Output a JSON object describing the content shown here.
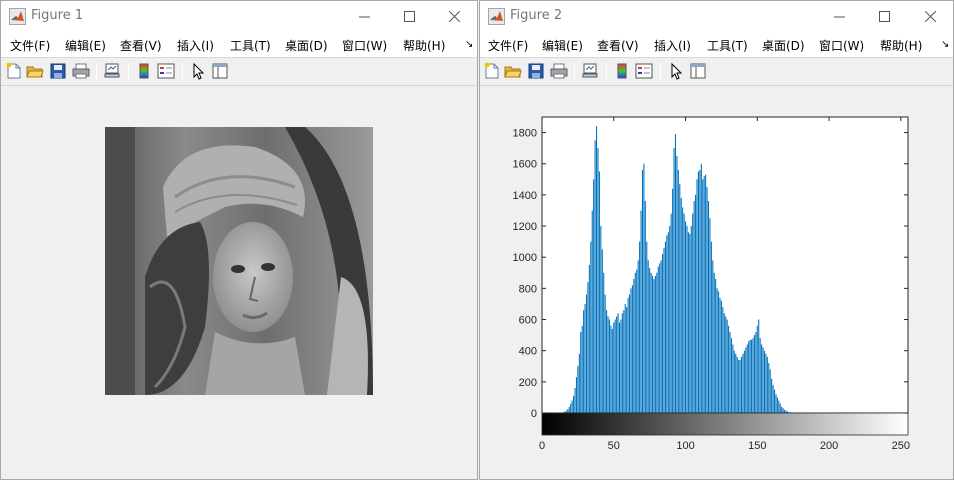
{
  "window1": {
    "title": "Figure 1",
    "menu": [
      "文件(F)",
      "编辑(E)",
      "查看(V)",
      "插入(I)",
      "工具(T)",
      "桌面(D)",
      "窗口(W)",
      "帮助(H)"
    ],
    "menu_overflow": "↘",
    "image_description": "grayscale photograph of a woman wearing a wide-brimmed hat"
  },
  "window2": {
    "title": "Figure 2",
    "menu": [
      "文件(F)",
      "编辑(E)",
      "查看(V)",
      "插入(I)",
      "工具(T)",
      "桌面(D)",
      "窗口(W)",
      "帮助(H)"
    ],
    "menu_overflow": "↘"
  },
  "toolbar_icons": [
    "new-figure-icon",
    "open-file-icon",
    "save-icon",
    "print-icon",
    "link-plot-icon",
    "insert-colorbar-icon",
    "insert-legend-icon",
    "pointer-icon",
    "property-editor-icon"
  ],
  "colors": {
    "bar": "#0072bd",
    "titlebar": "#ffffff",
    "panel": "#f0f0f0"
  },
  "chart_data": {
    "type": "bar",
    "title": "",
    "xlabel": "",
    "ylabel": "",
    "xlim": [
      0,
      255
    ],
    "ylim": [
      0,
      1900
    ],
    "yticks": [
      0,
      200,
      400,
      600,
      800,
      1000,
      1200,
      1400,
      1600,
      1800
    ],
    "xticks": [
      0,
      50,
      100,
      150,
      200,
      250
    ],
    "grid": false,
    "colorbar": "grayscale gradient 0-255",
    "series": [
      {
        "values": [
          0,
          0,
          0,
          0,
          0,
          0,
          0,
          0,
          0,
          0,
          0,
          0,
          0,
          0,
          0,
          5,
          10,
          15,
          25,
          40,
          60,
          80,
          110,
          160,
          230,
          300,
          380,
          520,
          560,
          660,
          700,
          760,
          840,
          950,
          1100,
          1300,
          1500,
          1750,
          1840,
          1700,
          1550,
          1200,
          1050,
          900,
          760,
          660,
          620,
          600,
          560,
          540,
          580,
          600,
          620,
          640,
          580,
          600,
          640,
          660,
          700,
          680,
          740,
          760,
          800,
          820,
          860,
          900,
          920,
          980,
          1100,
          1300,
          1560,
          1600,
          1360,
          1100,
          980,
          930,
          900,
          880,
          860,
          880,
          900,
          940,
          960,
          980,
          1020,
          1060,
          1100,
          1140,
          1160,
          1200,
          1280,
          1440,
          1700,
          1790,
          1650,
          1560,
          1470,
          1380,
          1320,
          1280,
          1230,
          1200,
          1160,
          1150,
          1200,
          1280,
          1360,
          1400,
          1500,
          1550,
          1560,
          1600,
          1500,
          1520,
          1530,
          1450,
          1360,
          1250,
          1100,
          980,
          900,
          860,
          800,
          780,
          740,
          720,
          680,
          640,
          620,
          600,
          560,
          520,
          480,
          440,
          400,
          380,
          360,
          340,
          340,
          360,
          380,
          400,
          420,
          440,
          460,
          470,
          470,
          480,
          500,
          520,
          560,
          600,
          480,
          440,
          420,
          400,
          380,
          360,
          320,
          280,
          220,
          180,
          150,
          120,
          100,
          80,
          60,
          40,
          30,
          20,
          15,
          10,
          5,
          5,
          3,
          2,
          1,
          1,
          0,
          0,
          0,
          0,
          0,
          0,
          0,
          0,
          0,
          0,
          0,
          0,
          0,
          0,
          0,
          0,
          0,
          0,
          0,
          0,
          0,
          0,
          0,
          0,
          0,
          0,
          0,
          0,
          0,
          0,
          0,
          0,
          0,
          0,
          0,
          0,
          0,
          0,
          0,
          0,
          0,
          0,
          0,
          0,
          0,
          0,
          0,
          0,
          0,
          0,
          0,
          0,
          0,
          0,
          0,
          0,
          0,
          0,
          0,
          0,
          0,
          0,
          0,
          0,
          0,
          0,
          0,
          0,
          0,
          0,
          0,
          0,
          0,
          0,
          0,
          0,
          0,
          0,
          0,
          0,
          0,
          0,
          0
        ]
      }
    ]
  }
}
